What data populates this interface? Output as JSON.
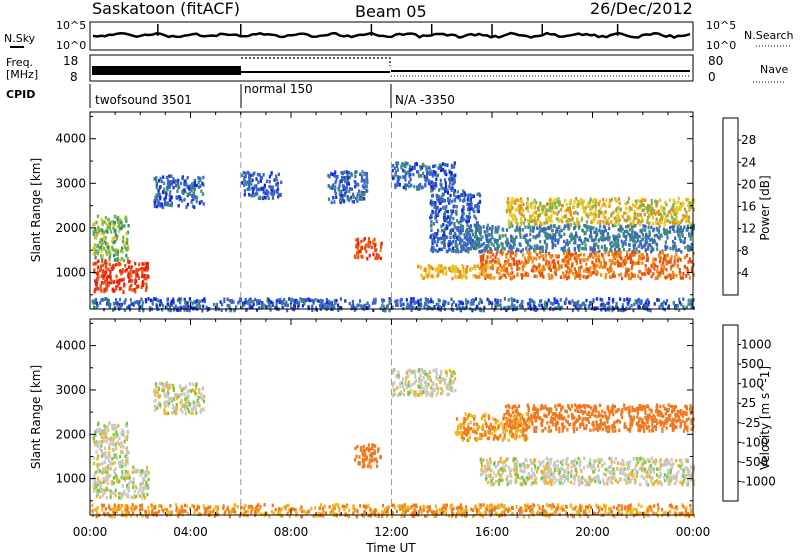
{
  "header": {
    "radar": "Saskatoon (fitACF)",
    "beam": "Beam 05",
    "date": "26/Dec/2012"
  },
  "noise_panel": {
    "left_label": "N.Sky",
    "right_label": "N.Search",
    "scale_top": "10^5",
    "scale_bottom": "10^0"
  },
  "freq_panel": {
    "left_label_1": "Freq.",
    "left_label_2": "[MHz]",
    "left_ticks": [
      "18",
      "8"
    ],
    "right_label": "Nave",
    "right_ticks": [
      "80",
      "0"
    ]
  },
  "cpid_panel": {
    "label": "CPID",
    "segments": [
      {
        "start_hour": 0,
        "end_hour": 6,
        "name": "twofsound 3501"
      },
      {
        "start_hour": 6,
        "end_hour": 12,
        "name": "normal 150"
      },
      {
        "start_hour": 12,
        "end_hour": 24,
        "name": "N/A -3350"
      }
    ]
  },
  "chart_data": [
    {
      "type": "heatmap",
      "title": "Power",
      "ylabel": "Slant Range [km]",
      "ylim": [
        180,
        4600
      ],
      "yticks": [
        1000,
        2000,
        3000,
        4000
      ],
      "xlim": [
        0,
        24
      ],
      "colorbar": {
        "label": "Power [dB]",
        "ticks": [
          "4",
          "8",
          "12",
          "16",
          "20",
          "24",
          "28"
        ],
        "colors": [
          "#1428e6",
          "#3c64c8",
          "#3c8c78",
          "#78b450",
          "#e6c828",
          "#f08c14",
          "#e65014",
          "#f01e0a"
        ]
      },
      "regions": [
        {
          "x": [
            0.1,
            2.3
          ],
          "y": [
            600,
            1300
          ],
          "level": 28
        },
        {
          "x": [
            0.1,
            1.5
          ],
          "y": [
            1300,
            2300
          ],
          "level": 14
        },
        {
          "x": [
            2.5,
            4.5
          ],
          "y": [
            2500,
            3200
          ],
          "level": 6
        },
        {
          "x": [
            6.0,
            7.6
          ],
          "y": [
            2700,
            3300
          ],
          "level": 6
        },
        {
          "x": [
            9.4,
            11.0
          ],
          "y": [
            2600,
            3300
          ],
          "level": 6
        },
        {
          "x": [
            10.5,
            11.6
          ],
          "y": [
            1300,
            1800
          ],
          "level": 26
        },
        {
          "x": [
            12.0,
            14.5
          ],
          "y": [
            2900,
            3500
          ],
          "level": 6
        },
        {
          "x": [
            13.5,
            15.5
          ],
          "y": [
            1500,
            2900
          ],
          "level": 6
        },
        {
          "x": [
            14.5,
            24.0
          ],
          "y": [
            1500,
            2100
          ],
          "level": 8
        },
        {
          "x": [
            15.5,
            24.0
          ],
          "y": [
            900,
            1500
          ],
          "level": 24
        },
        {
          "x": [
            13.0,
            16.0
          ],
          "y": [
            900,
            1200
          ],
          "level": 20
        },
        {
          "x": [
            16.5,
            24.0
          ],
          "y": [
            2100,
            2700
          ],
          "level": 18
        },
        {
          "x": [
            0.0,
            24.0
          ],
          "y": [
            180,
            450
          ],
          "level": 6
        }
      ]
    },
    {
      "type": "heatmap",
      "title": "Velocity",
      "ylabel": "Slant Range [km]",
      "xlabel": "Time UT",
      "ylim": [
        180,
        4600
      ],
      "yticks": [
        1000,
        2000,
        3000,
        4000
      ],
      "xlim": [
        0,
        24
      ],
      "xticks": [
        "00:00",
        "04:00",
        "08:00",
        "12:00",
        "16:00",
        "20:00",
        "00:00"
      ],
      "colorbar": {
        "label": "Velocity [m s^-1]",
        "ticks": [
          "1000",
          "500",
          "100",
          "25",
          "-25",
          "-100",
          "-500",
          "-1000"
        ],
        "colors": [
          "#1e3cc8",
          "#3c78b4",
          "#3c8c50",
          "#78c83c",
          "#c8c8c8",
          "#f0b41e",
          "#f0781e",
          "#e6501e",
          "#e61e1e"
        ]
      },
      "regions": [
        {
          "x": [
            0.1,
            2.3
          ],
          "y": [
            600,
            1300
          ],
          "level": 0
        },
        {
          "x": [
            0.1,
            1.5
          ],
          "y": [
            1300,
            2300
          ],
          "level": 0
        },
        {
          "x": [
            2.5,
            4.5
          ],
          "y": [
            2500,
            3200
          ],
          "level": 0
        },
        {
          "x": [
            10.5,
            11.6
          ],
          "y": [
            1300,
            1800
          ],
          "level": -200
        },
        {
          "x": [
            12.0,
            14.5
          ],
          "y": [
            2900,
            3500
          ],
          "level": 0
        },
        {
          "x": [
            15.5,
            24.0
          ],
          "y": [
            900,
            1500
          ],
          "level": 0
        },
        {
          "x": [
            16.5,
            24.0
          ],
          "y": [
            2100,
            2700
          ],
          "level": -300
        },
        {
          "x": [
            14.5,
            17.5
          ],
          "y": [
            1900,
            2500
          ],
          "level": -100
        },
        {
          "x": [
            0.0,
            24.0
          ],
          "y": [
            180,
            450
          ],
          "level": -100
        }
      ]
    }
  ]
}
